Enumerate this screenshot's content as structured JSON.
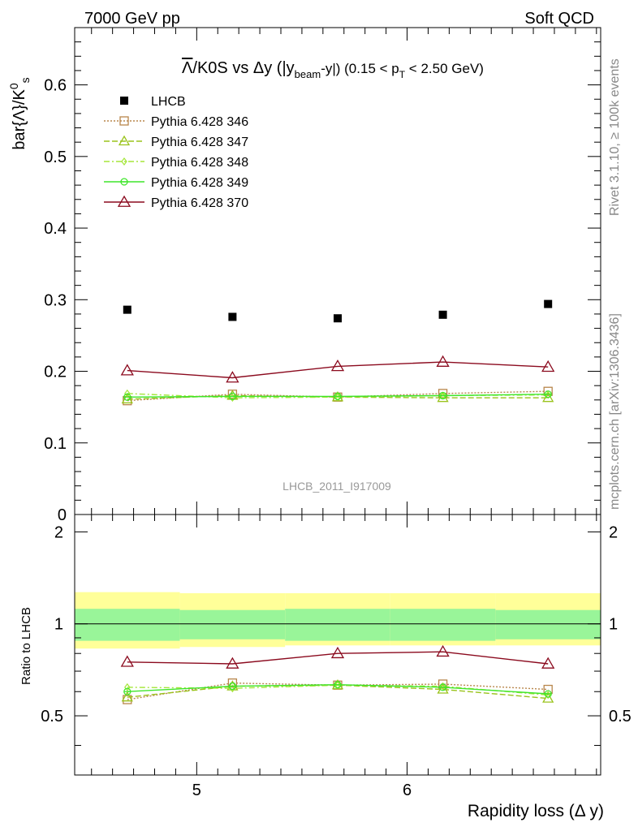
{
  "header": {
    "left": "7000 GeV pp",
    "right": "Soft QCD"
  },
  "side_text": {
    "rivet": "Rivet 3.1.10, ≥ 100k events",
    "source": "mcplots.cern.ch [arXiv:1306.3436]"
  },
  "watermark": "LHCB_2011_I917009",
  "title": {
    "lambda_bar": "Λ",
    "main": "/K0S vs Δy (|y",
    "sub_beam": "beam",
    "mid": "-y|) (0.15 < p",
    "sub_t": "T",
    "end": " < 2.50 GeV)"
  },
  "ylabel_main": {
    "text": "bar{Λ}/K",
    "sup": "0",
    "sub": "s"
  },
  "ylabel_ratio": "Ratio to LHCB",
  "xlabel": "Rapidity loss (Δ y)",
  "colors": {
    "data": "#000000",
    "p346": "#b8864b",
    "p347": "#9ac31c",
    "p348": "#a5e63a",
    "p349": "#3ee62a",
    "p370": "#8b0a1e",
    "band_inner": "#99f599",
    "band_outer": "#ffff99"
  },
  "chart_data": [
    {
      "type": "scatter",
      "panel": "main",
      "x": [
        4.67,
        5.17,
        5.67,
        6.17,
        6.67
      ],
      "x_edges": [
        4.42,
        4.92,
        5.42,
        5.92,
        6.42,
        6.92
      ],
      "xlim": [
        4.42,
        6.92
      ],
      "ylim": [
        0,
        0.68
      ],
      "yticks": [
        "0",
        "0.1",
        "0.2",
        "0.3",
        "0.4",
        "0.5",
        "0.6"
      ],
      "xticks": [
        "5",
        "6"
      ],
      "series": [
        {
          "name": "LHCB",
          "style": "data",
          "values": [
            0.286,
            0.276,
            0.274,
            0.279,
            0.294
          ]
        },
        {
          "name": "Pythia 6.428 346",
          "style": "p346",
          "values": [
            0.159,
            0.168,
            0.164,
            0.169,
            0.172
          ]
        },
        {
          "name": "Pythia 6.428 347",
          "style": "p347",
          "values": [
            0.161,
            0.166,
            0.164,
            0.163,
            0.163
          ]
        },
        {
          "name": "Pythia 6.428 348",
          "style": "p348",
          "values": [
            0.169,
            0.163,
            0.164,
            0.166,
            0.167
          ]
        },
        {
          "name": "Pythia 6.428 349",
          "style": "p349",
          "values": [
            0.164,
            0.165,
            0.165,
            0.166,
            0.168
          ]
        },
        {
          "name": "Pythia 6.428 370",
          "style": "p370",
          "values": [
            0.201,
            0.191,
            0.207,
            0.213,
            0.206
          ]
        }
      ]
    },
    {
      "type": "line",
      "panel": "ratio",
      "x": [
        4.67,
        5.17,
        5.67,
        6.17,
        6.67
      ],
      "xlim": [
        4.42,
        6.92
      ],
      "ylim": [
        0.32,
        2.28
      ],
      "yticks": [
        "0.5",
        "1",
        "2"
      ],
      "xticks": [
        "5",
        "6"
      ],
      "band_inner": [
        [
          0.88,
          1.12
        ],
        [
          0.89,
          1.11
        ],
        [
          0.88,
          1.12
        ],
        [
          0.88,
          1.12
        ],
        [
          0.89,
          1.11
        ]
      ],
      "band_outer": [
        [
          0.83,
          1.27
        ],
        [
          0.84,
          1.26
        ],
        [
          0.85,
          1.26
        ],
        [
          0.85,
          1.26
        ],
        [
          0.85,
          1.26
        ]
      ],
      "series": [
        {
          "name": "Pythia 6.428 346",
          "style": "p346",
          "values": [
            0.565,
            0.64,
            0.63,
            0.635,
            0.61
          ]
        },
        {
          "name": "Pythia 6.428 347",
          "style": "p347",
          "values": [
            0.575,
            0.625,
            0.63,
            0.61,
            0.57
          ]
        },
        {
          "name": "Pythia 6.428 348",
          "style": "p348",
          "values": [
            0.62,
            0.615,
            0.63,
            0.625,
            0.585
          ]
        },
        {
          "name": "Pythia 6.428 349",
          "style": "p349",
          "values": [
            0.6,
            0.625,
            0.632,
            0.62,
            0.59
          ]
        },
        {
          "name": "Pythia 6.428 370",
          "style": "p370",
          "values": [
            0.75,
            0.74,
            0.8,
            0.81,
            0.74
          ]
        }
      ]
    }
  ]
}
